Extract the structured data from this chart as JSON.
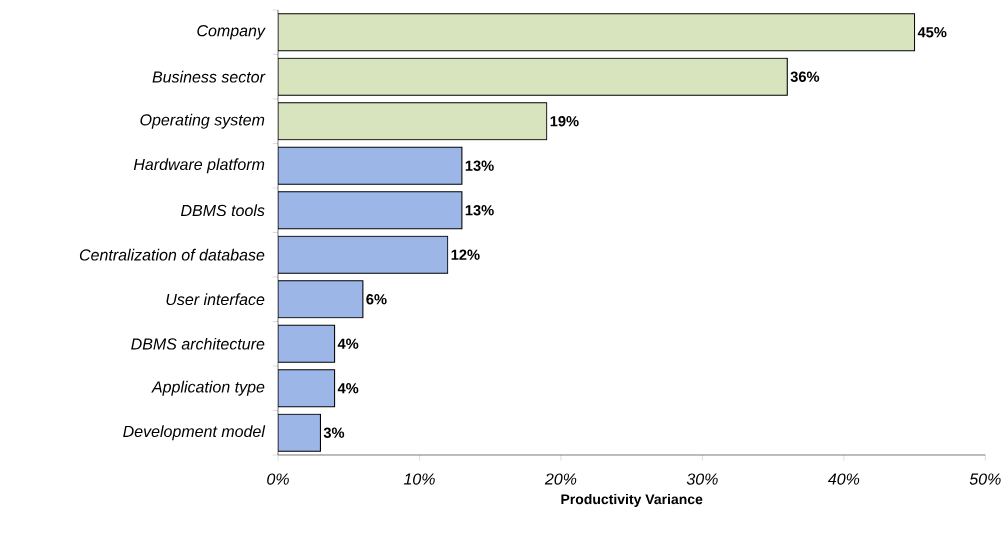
{
  "chart_data": {
    "type": "bar",
    "orientation": "horizontal",
    "xlabel": "Productivity Variance",
    "categories": [
      "Company",
      "Business sector",
      "Operating system",
      "Hardware platform",
      "DBMS tools",
      "Centralization of database",
      "User interface",
      "DBMS architecture",
      "Application type",
      "Development model"
    ],
    "values": [
      45,
      36,
      19,
      13,
      13,
      12,
      6,
      4,
      4,
      3
    ],
    "value_labels": [
      "45%",
      "36%",
      "19%",
      "13%",
      "13%",
      "12%",
      "6%",
      "4%",
      "4%",
      "3%"
    ],
    "colors": [
      "#d7e4bd",
      "#d7e4bd",
      "#d7e4bd",
      "#9cb6e8",
      "#9cb6e8",
      "#9cb6e8",
      "#9cb6e8",
      "#9cb6e8",
      "#9cb6e8",
      "#9cb6e8"
    ],
    "xlim": [
      0,
      50
    ],
    "xticks": [
      {
        "value": 0,
        "label": "0%"
      },
      {
        "value": 10,
        "label": "10%"
      },
      {
        "value": 20,
        "label": "20%"
      },
      {
        "value": 30,
        "label": "30%"
      },
      {
        "value": 40,
        "label": "40%"
      },
      {
        "value": 50,
        "label": "50%"
      }
    ],
    "grid": false
  }
}
